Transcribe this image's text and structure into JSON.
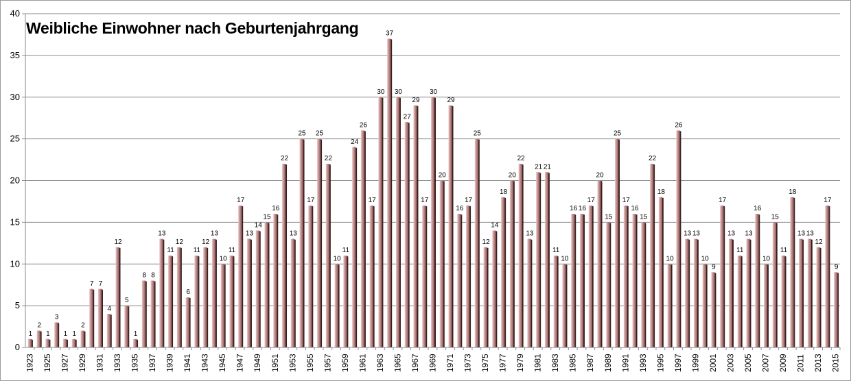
{
  "chart_data": {
    "type": "bar",
    "title": "Weibliche Einwohner nach Geburtenjahrgang",
    "xlabel": "",
    "ylabel": "",
    "ylim": [
      0,
      40
    ],
    "yticks": [
      "0",
      "5",
      "10",
      "15",
      "20",
      "25",
      "30",
      "35",
      "40"
    ],
    "grid": true,
    "legend": "none",
    "bar_color": "#c69191",
    "categories": [
      "1923",
      "1924",
      "1925",
      "1926",
      "1927",
      "1928",
      "1929",
      "1930",
      "1931",
      "1932",
      "1933",
      "1934",
      "1935",
      "1936",
      "1937",
      "1938",
      "1939",
      "1940",
      "1941",
      "1942",
      "1943",
      "1944",
      "1945",
      "1946",
      "1947",
      "1948",
      "1949",
      "1950",
      "1951",
      "1952",
      "1953",
      "1954",
      "1955",
      "1956",
      "1957",
      "1958",
      "1959",
      "1960",
      "1961",
      "1962",
      "1963",
      "1964",
      "1965",
      "1966",
      "1967",
      "1968",
      "1969",
      "1970",
      "1971",
      "1972",
      "1973",
      "1974",
      "1975",
      "1976",
      "1977",
      "1978",
      "1979",
      "1980",
      "1981",
      "1982",
      "1983",
      "1984",
      "1985",
      "1986",
      "1987",
      "1988",
      "1989",
      "1990",
      "1991",
      "1992",
      "1993",
      "1994",
      "1995",
      "1996",
      "1997",
      "1998",
      "1999",
      "2000",
      "2001",
      "2002",
      "2003",
      "2004",
      "2005",
      "2006",
      "2007",
      "2008",
      "2009",
      "2010",
      "2011",
      "2012",
      "2013",
      "2014",
      "2015"
    ],
    "values": [
      1,
      2,
      1,
      3,
      1,
      1,
      2,
      7,
      7,
      4,
      12,
      5,
      1,
      8,
      8,
      13,
      11,
      12,
      6,
      11,
      12,
      13,
      10,
      11,
      17,
      13,
      14,
      15,
      16,
      22,
      13,
      25,
      17,
      25,
      22,
      10,
      11,
      24,
      26,
      17,
      30,
      37,
      30,
      27,
      29,
      17,
      30,
      20,
      29,
      16,
      17,
      25,
      12,
      14,
      18,
      20,
      22,
      13,
      21,
      21,
      11,
      10,
      16,
      16,
      17,
      20,
      15,
      25,
      17,
      16,
      15,
      22,
      18,
      10,
      26,
      13,
      13,
      10,
      9,
      17,
      13,
      11,
      13,
      16,
      10,
      15,
      11,
      18,
      13,
      13,
      12,
      17,
      9
    ]
  }
}
